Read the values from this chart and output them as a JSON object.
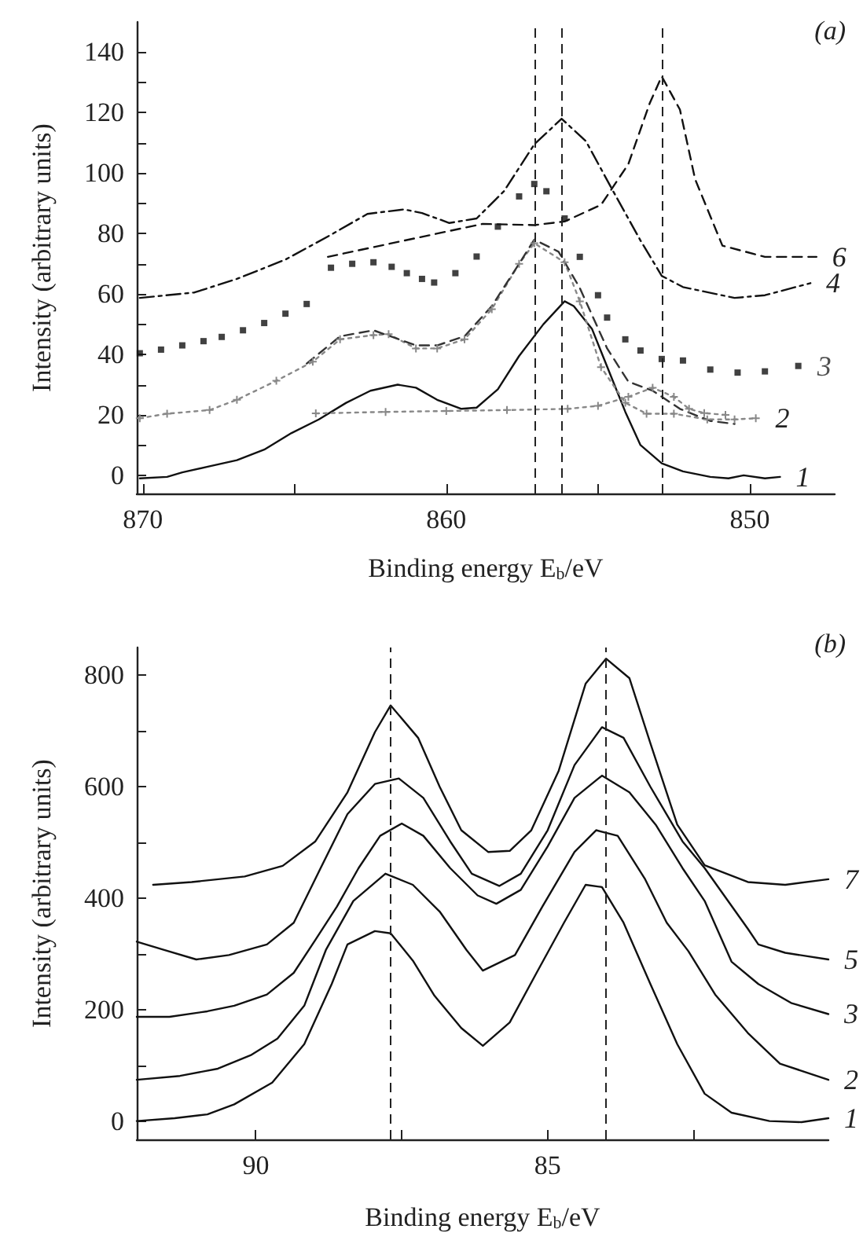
{
  "chart_data": [
    {
      "type": "line",
      "title": "(a)",
      "xlabel": "Binding energy E$_{b}$/eV",
      "ylabel": "Intensity (arbitrary units)",
      "xlim": [
        870.2,
        847.2
      ],
      "ylim": [
        -6,
        150
      ],
      "xticks": [
        870,
        {
          "value": 865,
          "label": null
        },
        860,
        {
          "value": 855,
          "label": null
        },
        850
      ],
      "yticks": [
        0,
        {
          "value": 10,
          "label": null
        },
        20,
        {
          "value": 30,
          "label": null
        },
        40,
        {
          "value": 50,
          "label": null
        },
        60,
        {
          "value": 70,
          "label": null
        },
        80,
        {
          "value": 90,
          "label": null
        },
        100,
        {
          "value": 110,
          "label": null
        },
        120,
        {
          "value": 130,
          "label": null
        },
        140
      ],
      "grid": false,
      "legend": false,
      "ref_lines": [
        {
          "axis": "x",
          "value": 857.1,
          "line_style": "dashed",
          "color": "#222222"
        },
        {
          "axis": "x",
          "value": 856.2,
          "line_style": "dashed",
          "color": "#222222"
        },
        {
          "axis": "x",
          "value": 852.9,
          "line_style": "dashed",
          "color": "#222222"
        }
      ],
      "series": [
        {
          "name": "1",
          "color": "#111111",
          "line_style": "solid",
          "marker": "none",
          "x": [
            870.1,
            869.2,
            868.7,
            867.8,
            866.9,
            866,
            865.1,
            864.2,
            863.3,
            862.5,
            861.6,
            861,
            860.3,
            859.5,
            859,
            858.3,
            857.6,
            856.8,
            856.1,
            855.8,
            855.2,
            854.7,
            854.1,
            853.6,
            852.9,
            852.2,
            851.3,
            850.7,
            850.2,
            849.5,
            849
          ],
          "values": [
            -1,
            -0.5,
            1,
            3,
            5,
            8.5,
            14,
            18.5,
            24,
            28,
            30,
            29,
            25,
            22,
            22.4,
            28.5,
            39.5,
            50,
            57.6,
            56,
            48.5,
            36,
            21,
            10,
            4,
            1.3,
            -0.5,
            -1,
            0,
            -1,
            -0.5
          ]
        },
        {
          "name": "2",
          "color": "#888888",
          "line_style": "dotted",
          "marker": "cross",
          "x": [
            870.1,
            869.2,
            867.8,
            866.9,
            865.6,
            864.4,
            863.5,
            862.4,
            861.9,
            861,
            860.3,
            859.4,
            858.5,
            857.6,
            857.1,
            856.1,
            855.6,
            854.9,
            854.1,
            853.4,
            852.5,
            851.4,
            850.5,
            849.8
          ],
          "values": [
            18.9,
            20.4,
            21.6,
            25,
            31.3,
            37.6,
            45,
            46.4,
            46.7,
            42,
            42,
            45,
            55,
            70,
            76.8,
            70.5,
            57.6,
            35.8,
            24,
            20.4,
            20.4,
            18.5,
            18.5,
            18.9
          ]
        },
        {
          "color": "#333333",
          "line_style": "dashed",
          "marker": "none",
          "x": [
            864.6,
            863.5,
            862.4,
            861,
            860.3,
            859.4,
            858.5,
            857.6,
            857.1,
            856.3,
            855.6,
            854.7,
            854,
            853.2,
            852.3,
            851.3,
            850.5
          ],
          "values": [
            37,
            46,
            48,
            43,
            43,
            46,
            56,
            70,
            78,
            74,
            62,
            42,
            31,
            28,
            22,
            18,
            17
          ]
        },
        {
          "color": "#888888",
          "line_style": "dotted",
          "marker": "cross",
          "x": [
            864.3,
            862,
            860,
            858,
            856,
            855,
            854,
            853.2,
            852.5,
            852,
            851.5,
            850.8
          ],
          "values": [
            20.5,
            21,
            21.3,
            21.6,
            22,
            23,
            26,
            29,
            26,
            22,
            20.6,
            20
          ]
        },
        {
          "name": "3",
          "type": "scatter",
          "color": "#111111",
          "marker": "square",
          "x": [
            870.1,
            869.4,
            868.7,
            868,
            867.4,
            866.7,
            866,
            865.3,
            864.6,
            863.8,
            863.1,
            862.4,
            861.8,
            861.3,
            860.8,
            860.4,
            859.7,
            859,
            858.3,
            857.6,
            857.1,
            856.7,
            856.1,
            855.6,
            855,
            854.7,
            854.1,
            853.6,
            852.9,
            852.2,
            851.3,
            850.4,
            849.5,
            848.4
          ],
          "values": [
            40.4,
            41.6,
            43,
            44.4,
            45.8,
            48,
            50.4,
            53.5,
            56.7,
            68.7,
            70,
            70.5,
            69,
            66.9,
            65,
            63.8,
            66.9,
            72.4,
            82.3,
            92.3,
            96.4,
            94,
            85,
            72.3,
            59.6,
            52.2,
            45,
            41.3,
            38.5,
            38,
            35,
            34,
            34.4,
            36.2
          ]
        },
        {
          "name": "4",
          "color": "#111111",
          "line_style": "dashdot",
          "marker": "none",
          "x": [
            870.1,
            868.3,
            866.9,
            865.3,
            863.8,
            862.6,
            861.4,
            860.8,
            859.9,
            859,
            858.1,
            857.1,
            856.2,
            855.4,
            854.5,
            853.6,
            852.9,
            852.2,
            850.5,
            849.5,
            848
          ],
          "values": [
            58.7,
            60.5,
            65,
            71.4,
            79.6,
            86.5,
            88,
            86.8,
            83.5,
            85,
            94,
            109.5,
            118,
            110.6,
            94,
            77.7,
            66,
            62.3,
            58.7,
            59.6,
            63.6
          ]
        },
        {
          "name": "6",
          "color": "#111111",
          "line_style": "dashed",
          "marker": "none",
          "x": [
            863.9,
            858.8,
            857.1,
            856.1,
            854.9,
            854,
            853.3,
            852.9,
            852.3,
            851.8,
            850.9,
            849.5,
            847.8
          ],
          "values": [
            72.3,
            83.2,
            82.8,
            84,
            89.5,
            103,
            123,
            132,
            121,
            98,
            76,
            72.3,
            72.3
          ]
        }
      ]
    },
    {
      "type": "line",
      "title": "(b)",
      "xlabel": "Binding energy E$_{b}$/eV",
      "ylabel": "Intensity (arbitrary units)",
      "xlim": [
        92.04,
        80.19
      ],
      "ylim": [
        -33,
        850
      ],
      "xticks": [
        90,
        {
          "value": 87.5,
          "label": null
        },
        85,
        {
          "value": 82.5,
          "label": null
        }
      ],
      "yticks": [
        0,
        {
          "value": 100,
          "label": null
        },
        200,
        {
          "value": 300,
          "label": null
        },
        400,
        {
          "value": 500,
          "label": null
        },
        600,
        {
          "value": 700,
          "label": null
        },
        800
      ],
      "grid": false,
      "legend": false,
      "ref_lines": [
        {
          "axis": "x",
          "value": 87.7,
          "line_style": "dashed",
          "color": "#222222"
        },
        {
          "axis": "x",
          "value": 84,
          "line_style": "dashed",
          "color": "#222222"
        }
      ],
      "series": [
        {
          "name": "7",
          "color": "#111111",
          "line_style": "solid",
          "marker": "none",
          "x": [
            91.76,
            91.1,
            90.19,
            89.54,
            88.98,
            88.43,
            87.96,
            87.69,
            87.22,
            86.85,
            86.48,
            86.02,
            85.65,
            85.28,
            84.81,
            84.35,
            84,
            83.6,
            83.24,
            82.78,
            82.31,
            81.57,
            80.93,
            80.19
          ],
          "values": [
            424,
            429,
            439,
            458,
            502,
            590,
            698,
            746,
            688,
            600,
            522,
            483,
            485,
            522,
            629,
            785,
            830,
            795,
            678,
            532,
            459,
            429,
            424,
            434
          ]
        },
        {
          "name": "5",
          "color": "#111111",
          "line_style": "solid",
          "marker": "none",
          "x": [
            92.04,
            91.57,
            91.02,
            90.46,
            89.81,
            89.35,
            88.89,
            88.43,
            87.96,
            87.55,
            87.13,
            86.67,
            86.3,
            85.83,
            85.46,
            85,
            84.54,
            84.07,
            83.7,
            83.24,
            82.69,
            82.31,
            81.57,
            81.39,
            80.93,
            80.19
          ],
          "values": [
            322,
            307,
            290,
            298,
            317,
            356,
            454,
            551,
            605,
            615,
            580,
            502,
            444,
            422,
            444,
            522,
            639,
            707,
            688,
            600,
            502,
            454,
            345,
            317,
            302,
            290
          ]
        },
        {
          "name": "3",
          "color": "#111111",
          "line_style": "solid",
          "marker": "none",
          "x": [
            92.04,
            91.48,
            90.83,
            90.37,
            89.81,
            89.35,
            88.98,
            88.61,
            88.24,
            87.87,
            87.5,
            87.13,
            86.67,
            86.2,
            85.88,
            85.46,
            85,
            84.54,
            84.07,
            83.6,
            83.15,
            82.69,
            82.31,
            81.85,
            81.39,
            80.83,
            80.19
          ],
          "values": [
            187,
            187,
            197,
            207,
            227,
            266,
            325,
            385,
            454,
            512,
            534,
            512,
            454,
            405,
            390,
            415,
            493,
            580,
            620,
            590,
            532,
            454,
            395,
            286,
            246,
            212,
            192
          ]
        },
        {
          "name": "2",
          "color": "#111111",
          "line_style": "solid",
          "marker": "none",
          "x": [
            92.04,
            91.3,
            90.65,
            90.09,
            89.63,
            89.17,
            88.8,
            88.33,
            87.78,
            87.31,
            86.85,
            86.39,
            86.11,
            85.56,
            85.09,
            84.54,
            84.17,
            83.8,
            83.33,
            82.96,
            82.59,
            82.13,
            81.57,
            81.02,
            80.19
          ],
          "values": [
            74,
            81,
            94,
            118,
            148,
            207,
            307,
            395,
            444,
            424,
            376,
            307,
            270,
            298,
            385,
            483,
            522,
            512,
            434,
            356,
            305,
            227,
            158,
            103,
            74
          ]
        },
        {
          "name": "1",
          "color": "#111111",
          "line_style": "solid",
          "marker": "none",
          "x": [
            92.04,
            91.39,
            90.83,
            90.37,
            89.72,
            89.17,
            88.7,
            88.43,
            87.96,
            87.69,
            87.31,
            86.94,
            86.48,
            86.11,
            85.65,
            85.19,
            84.72,
            84.35,
            84.07,
            83.7,
            83.24,
            82.78,
            82.31,
            81.85,
            81.2,
            80.65,
            80.19
          ],
          "values": [
            0,
            5,
            12,
            30,
            69,
            138,
            246,
            317,
            341,
            337,
            288,
            225,
            167,
            135,
            177,
            266,
            356,
            424,
            420,
            356,
            246,
            138,
            49,
            15,
            0,
            -2,
            5
          ]
        }
      ]
    }
  ]
}
